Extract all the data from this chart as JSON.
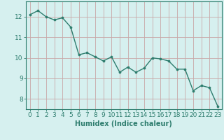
{
  "x": [
    0,
    1,
    2,
    3,
    4,
    5,
    6,
    7,
    8,
    9,
    10,
    11,
    12,
    13,
    14,
    15,
    16,
    17,
    18,
    19,
    20,
    21,
    22,
    23
  ],
  "y": [
    12.1,
    12.3,
    12.0,
    11.85,
    11.95,
    11.5,
    10.15,
    10.25,
    10.05,
    9.85,
    10.05,
    9.3,
    9.55,
    9.3,
    9.5,
    10.0,
    9.95,
    9.85,
    9.45,
    9.45,
    8.4,
    8.65,
    8.55,
    7.65
  ],
  "line_color": "#2e7d6e",
  "marker": "o",
  "marker_size": 2.2,
  "bg_color": "#d6f0ef",
  "grid_color": "#c0dedd",
  "axis_color": "#2e7d6e",
  "xlabel": "Humidex (Indice chaleur)",
  "xlim": [
    -0.5,
    23.5
  ],
  "ylim": [
    7.5,
    12.75
  ],
  "yticks": [
    8,
    9,
    10,
    11,
    12
  ],
  "xticks": [
    0,
    1,
    2,
    3,
    4,
    5,
    6,
    7,
    8,
    9,
    10,
    11,
    12,
    13,
    14,
    15,
    16,
    17,
    18,
    19,
    20,
    21,
    22,
    23
  ],
  "xlabel_fontsize": 7,
  "tick_fontsize": 6.5,
  "line_width": 1.0
}
